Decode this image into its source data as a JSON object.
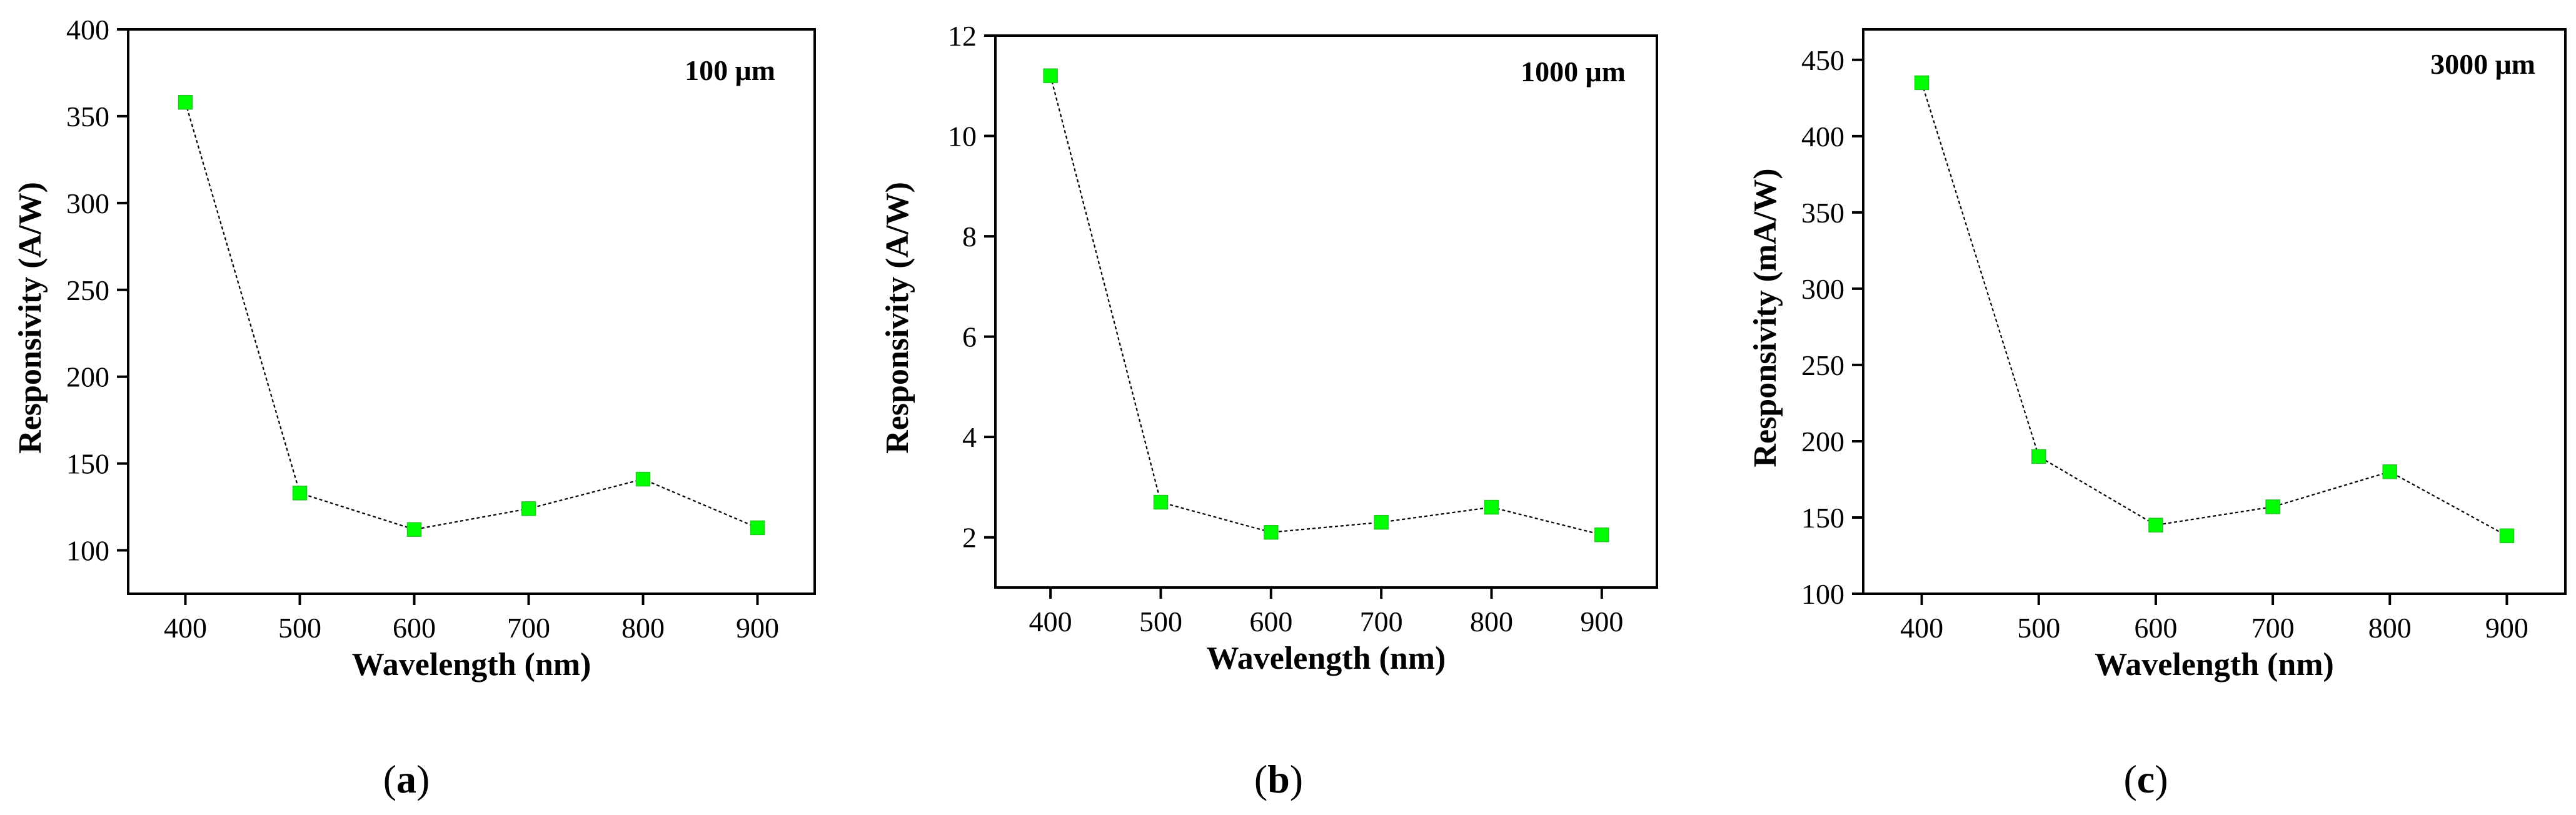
{
  "chart_data": [
    {
      "type": "line",
      "panel": "a",
      "annotation": "100 μm",
      "xlabel": "Wavelength (nm)",
      "ylabel": "Responsivity (A/W)",
      "x": [
        400,
        500,
        600,
        700,
        800,
        900
      ],
      "y": [
        358,
        133,
        112,
        124,
        141,
        113
      ],
      "xticks": [
        "400",
        "500",
        "600",
        "700",
        "800",
        "900"
      ],
      "yticks": [
        "100",
        "150",
        "200",
        "250",
        "300",
        "350",
        "400"
      ],
      "xlim": [
        350,
        950
      ],
      "ylim": [
        75,
        400
      ],
      "ytick_values": [
        100,
        150,
        200,
        250,
        300,
        350,
        400
      ],
      "marker_color": "#00ff00"
    },
    {
      "type": "line",
      "panel": "b",
      "annotation": "1000 μm",
      "xlabel": "Wavelength (nm)",
      "ylabel": "Responsivity (A/W)",
      "x": [
        400,
        500,
        600,
        700,
        800,
        900
      ],
      "y": [
        11.2,
        2.7,
        2.1,
        2.3,
        2.6,
        2.05
      ],
      "xticks": [
        "400",
        "500",
        "600",
        "700",
        "800",
        "900"
      ],
      "yticks": [
        "2",
        "4",
        "6",
        "8",
        "10",
        "12"
      ],
      "xlim": [
        350,
        950
      ],
      "ylim": [
        1,
        12
      ],
      "ytick_values": [
        2,
        4,
        6,
        8,
        10,
        12
      ],
      "marker_color": "#00ff00"
    },
    {
      "type": "line",
      "panel": "c",
      "annotation": "3000 μm",
      "xlabel": "Wavelength (nm)",
      "ylabel": "Responsivity (mA/W)",
      "x": [
        400,
        500,
        600,
        700,
        800,
        900
      ],
      "y": [
        435,
        190,
        145,
        157,
        180,
        138
      ],
      "xticks": [
        "400",
        "500",
        "600",
        "700",
        "800",
        "900"
      ],
      "yticks": [
        "100",
        "150",
        "200",
        "250",
        "300",
        "350",
        "400",
        "450"
      ],
      "xlim": [
        350,
        950
      ],
      "ylim": [
        100,
        470
      ],
      "ytick_values": [
        100,
        150,
        200,
        250,
        300,
        350,
        400,
        450
      ],
      "marker_color": "#00ff00"
    }
  ],
  "panel_labels": [
    "(a)",
    "(b)",
    "(c)"
  ]
}
